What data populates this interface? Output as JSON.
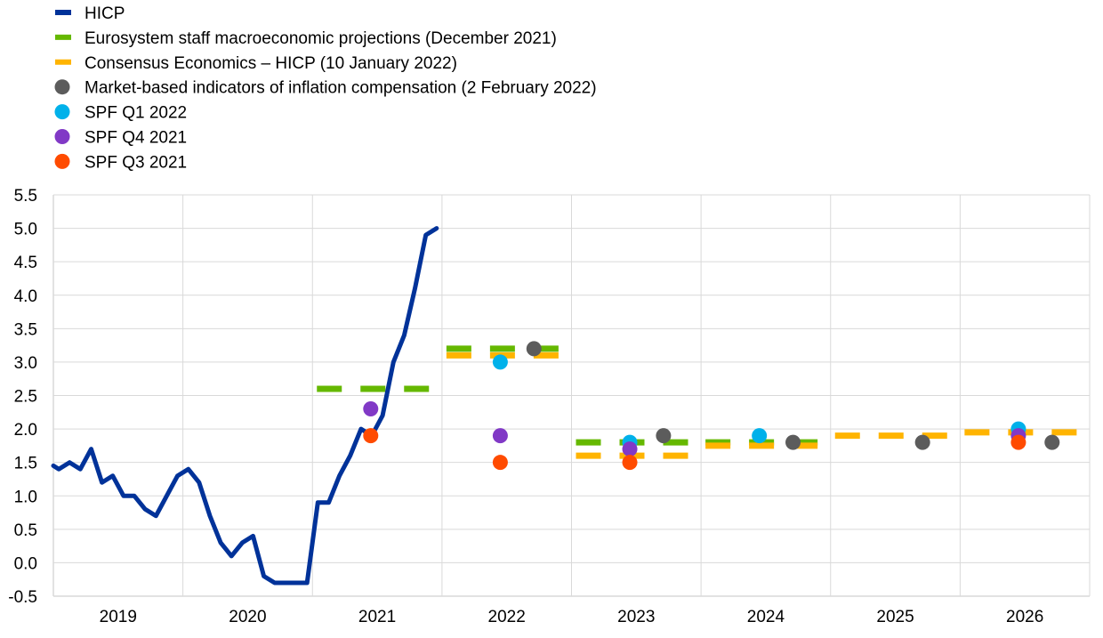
{
  "chart_data": {
    "type": "line",
    "title": "",
    "xlabel": "",
    "ylabel": "",
    "ylim": [
      -0.5,
      5.5
    ],
    "yticks": [
      "5.5",
      "5.0",
      "4.5",
      "4.0",
      "3.5",
      "3.0",
      "2.5",
      "2.0",
      "1.5",
      "1.0",
      "0.5",
      "0.0",
      "-0.5"
    ],
    "xticks": [
      "2019",
      "2020",
      "2021",
      "2022",
      "2023",
      "2024",
      "2025",
      "2026"
    ],
    "grid": true,
    "legend_placement": "top-left",
    "hicp": {
      "name": "HICP",
      "color": "#003299",
      "start": "2019-01",
      "frequency": "monthly",
      "values": [
        1.4,
        1.5,
        1.4,
        1.7,
        1.2,
        1.3,
        1.0,
        1.0,
        0.8,
        0.7,
        1.0,
        1.3,
        1.4,
        1.2,
        0.7,
        0.3,
        0.1,
        0.3,
        0.4,
        -0.2,
        -0.3,
        -0.3,
        -0.3,
        -0.3,
        0.9,
        0.9,
        1.3,
        1.6,
        2.0,
        1.9,
        2.2,
        3.0,
        3.4,
        4.1,
        4.9,
        5.0
      ]
    },
    "projections": [
      {
        "name": "Eurosystem staff macroeconomic projections (December 2021)",
        "color": "#65b800",
        "points": [
          {
            "year": 2021,
            "value": 2.6
          },
          {
            "year": 2022,
            "value": 3.2
          },
          {
            "year": 2023,
            "value": 1.8
          },
          {
            "year": 2024,
            "value": 1.8
          }
        ]
      },
      {
        "name": "Consensus Economics – HICP (10 January 2022)",
        "color": "#ffb400",
        "points": [
          {
            "year": 2022,
            "value": 3.1
          },
          {
            "year": 2023,
            "value": 1.6
          },
          {
            "year": 2024,
            "value": 1.75
          },
          {
            "year": 2025,
            "value": 1.9
          },
          {
            "year": 2026,
            "value": 1.95
          }
        ]
      }
    ],
    "markers": [
      {
        "name": "Market-based indicators of inflation compensation (2 February 2022)",
        "color": "#5c5c5c",
        "offset": 0.71,
        "points": [
          {
            "year": 2022,
            "value": 3.2
          },
          {
            "year": 2023,
            "value": 1.9
          },
          {
            "year": 2024,
            "value": 1.8
          },
          {
            "year": 2025,
            "value": 1.8
          },
          {
            "year": 2026,
            "value": 1.8
          }
        ]
      },
      {
        "name": "SPF Q1 2022",
        "color": "#00b1ea",
        "offset": 0.45,
        "points": [
          {
            "year": 2022,
            "value": 3.0
          },
          {
            "year": 2023,
            "value": 1.8
          },
          {
            "year": 2024,
            "value": 1.9
          },
          {
            "year": 2026,
            "value": 2.0
          }
        ]
      },
      {
        "name": "SPF Q4 2021",
        "color": "#8139c6",
        "offset": 0.45,
        "points": [
          {
            "year": 2021,
            "value": 2.3
          },
          {
            "year": 2022,
            "value": 1.9
          },
          {
            "year": 2023,
            "value": 1.7
          },
          {
            "year": 2026,
            "value": 1.9
          }
        ]
      },
      {
        "name": "SPF Q3 2021",
        "color": "#ff4b00",
        "offset": 0.45,
        "points": [
          {
            "year": 2021,
            "value": 1.9
          },
          {
            "year": 2022,
            "value": 1.5
          },
          {
            "year": 2023,
            "value": 1.5
          },
          {
            "year": 2026,
            "value": 1.8
          }
        ]
      }
    ]
  }
}
